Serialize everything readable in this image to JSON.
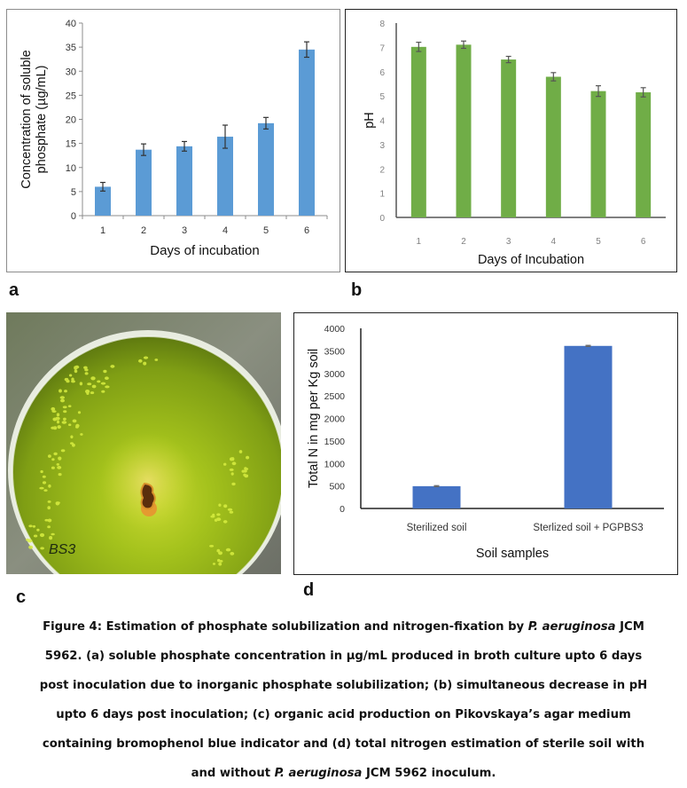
{
  "panel_labels": {
    "a": "a",
    "b": "b",
    "c": "c",
    "d": "d"
  },
  "photo": {
    "description": "Petri dish on Pikovskaya's agar with bromophenol blue indicator (green) showing colony with yellow-orange halo",
    "plate_label": "BS3",
    "colors": {
      "agar": "#9fbf1e",
      "agar_dark": "#6e8a12",
      "background": "#7a8070",
      "colony": "#6b3a10",
      "halo": "#e0a030",
      "bubbles": "#d8ee40"
    }
  },
  "caption": {
    "line1_pre": "Figure 4: Estimation of phosphate solubilization and nitrogen-fixation by ",
    "line1_italic": "P. aeruginosa",
    "line1_post": " JCM",
    "line2": "5962. (a) soluble phosphate concentration in µg/mL produced in broth culture upto 6 days",
    "line3": "post inoculation due to inorganic phosphate solubilization; (b) simultaneous decrease in pH",
    "line4": "upto 6 days post inoculation; (c) organic acid production on Pikovskaya’s agar medium",
    "line5": "containing bromophenol blue indicator and (d) total nitrogen estimation of sterile soil with",
    "line6_pre": "and without ",
    "line6_italic": "P. aeruginosa",
    "line6_post": " JCM 5962 inoculum."
  },
  "chart_data": [
    {
      "id": "a",
      "type": "bar",
      "title": "",
      "xlabel": "Days of incubation",
      "ylabel_lines": [
        "Concentration of soluble",
        "phosphate (µg/mL)"
      ],
      "categories": [
        "1",
        "2",
        "3",
        "4",
        "5",
        "6"
      ],
      "values": [
        6.0,
        13.7,
        14.4,
        16.4,
        19.2,
        34.5
      ],
      "errors": [
        0.9,
        1.2,
        1.0,
        2.4,
        1.2,
        1.6
      ],
      "ylim": [
        0,
        40
      ],
      "yticks": [
        0,
        5,
        10,
        15,
        20,
        25,
        30,
        35,
        40
      ],
      "color": "#5b9bd5",
      "grid": false,
      "legend": "none"
    },
    {
      "id": "b",
      "type": "bar",
      "title": "",
      "xlabel": "Days of Incubation",
      "ylabel_lines": [
        "pH"
      ],
      "categories": [
        "1",
        "2",
        "3",
        "4",
        "5",
        "6"
      ],
      "values": [
        7.02,
        7.11,
        6.5,
        5.79,
        5.2,
        5.15
      ],
      "errors": [
        0.19,
        0.15,
        0.13,
        0.17,
        0.22,
        0.19
      ],
      "ylim": [
        0,
        8
      ],
      "yticks": [
        0,
        1,
        2,
        3,
        4,
        5,
        6,
        7,
        8
      ],
      "color": "#70ad47",
      "grid": false,
      "legend": "none"
    },
    {
      "id": "d",
      "type": "bar",
      "title": "",
      "xlabel": "Soil samples",
      "ylabel_lines": [
        "Total N in mg per Kg soil"
      ],
      "categories": [
        "Sterilized soil",
        "Sterlized soil + PGPBS3"
      ],
      "values": [
        495,
        3610
      ],
      "errors": [
        12,
        12
      ],
      "ylim": [
        0,
        4000
      ],
      "yticks": [
        0,
        500,
        1000,
        1500,
        2000,
        2500,
        3000,
        3500,
        4000
      ],
      "color": "#4472c4",
      "grid": false,
      "legend": "none"
    }
  ]
}
